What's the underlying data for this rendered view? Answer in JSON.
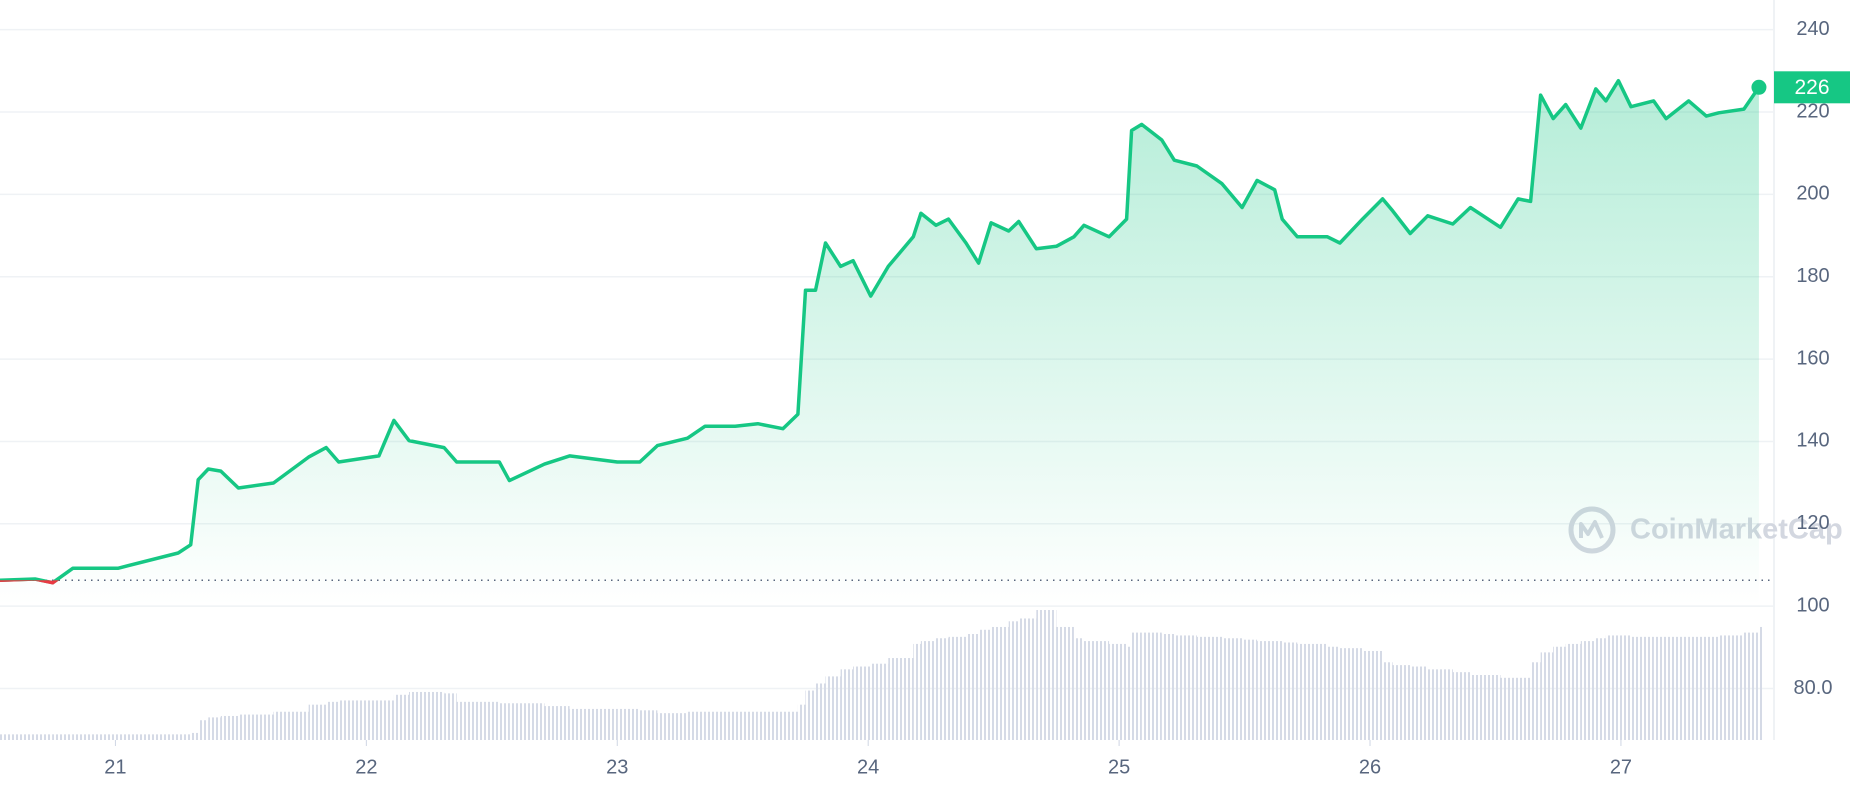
{
  "chart_data": {
    "type": "line",
    "x": [
      20.54,
      20.68,
      20.75,
      20.83,
      21.01,
      21.25,
      21.3,
      21.33,
      21.37,
      21.42,
      21.49,
      21.63,
      21.77,
      21.84,
      21.89,
      22.05,
      22.11,
      22.17,
      22.31,
      22.36,
      22.53,
      22.57,
      22.71,
      22.81,
      23.0,
      23.09,
      23.16,
      23.28,
      23.35,
      23.47,
      23.56,
      23.66,
      23.72,
      23.75,
      23.79,
      23.83,
      23.89,
      23.94,
      24.01,
      24.08,
      24.18,
      24.21,
      24.27,
      24.32,
      24.39,
      24.44,
      24.49,
      24.56,
      24.6,
      24.67,
      24.75,
      24.82,
      24.86,
      24.96,
      25.03,
      25.05,
      25.09,
      25.17,
      25.22,
      25.31,
      25.41,
      25.49,
      25.55,
      25.62,
      25.65,
      25.71,
      25.83,
      25.88,
      25.97,
      26.05,
      26.09,
      26.16,
      26.23,
      26.33,
      26.4,
      26.52,
      26.59,
      26.64,
      26.68,
      26.73,
      26.78,
      26.84,
      26.9,
      26.94,
      26.99,
      27.04,
      27.13,
      27.18,
      27.27,
      27.34,
      27.39,
      27.49,
      27.55
    ],
    "values": [
      106.3,
      106.6,
      105.7,
      109.2,
      109.2,
      112.9,
      114.9,
      130.7,
      133.3,
      132.8,
      128.7,
      129.9,
      136.2,
      138.5,
      135,
      136.5,
      145.1,
      140.2,
      138.5,
      135,
      135,
      130.5,
      134.5,
      136.5,
      135,
      135,
      139,
      140.8,
      143.7,
      143.7,
      144.3,
      143.1,
      146.6,
      176.7,
      176.7,
      188.2,
      182.5,
      183.9,
      175.3,
      182.5,
      189.7,
      195.4,
      192.5,
      194,
      188.2,
      183.3,
      193.1,
      191.1,
      193.4,
      186.8,
      187.4,
      189.7,
      192.5,
      189.7,
      194,
      215.5,
      217,
      213.2,
      208.3,
      206.9,
      202.6,
      196.8,
      203.4,
      201.1,
      194,
      189.7,
      189.7,
      188.2,
      194,
      198.9,
      196,
      190.5,
      194.8,
      192.8,
      196.8,
      192,
      198.9,
      198.3,
      224.1,
      218.4,
      221.8,
      216.1,
      225.6,
      222.7,
      227.6,
      221.3,
      222.7,
      218.4,
      222.7,
      219,
      219.8,
      220.7,
      226
    ],
    "volume": [
      4,
      4,
      4,
      4,
      4,
      4,
      5,
      14,
      16,
      17,
      18,
      20,
      25,
      27,
      28,
      28,
      32,
      34,
      33,
      27,
      26,
      26,
      24,
      22,
      22,
      21,
      19,
      20,
      20,
      20,
      20,
      20,
      25,
      35,
      40,
      45,
      50,
      52,
      54,
      58,
      68,
      70,
      72,
      73,
      75,
      78,
      80,
      84,
      86,
      92,
      80,
      72,
      70,
      68,
      66,
      76,
      76,
      75,
      74,
      73,
      72,
      71,
      70,
      70,
      69,
      68,
      66,
      65,
      63,
      55,
      53,
      52,
      50,
      48,
      46,
      44,
      44,
      55,
      62,
      66,
      68,
      70,
      72,
      74,
      74,
      73,
      73,
      73,
      73,
      73,
      74,
      76,
      80
    ],
    "color": "#16c784",
    "down_color": "#ea3943",
    "baseline": 106.3,
    "current_price": 226,
    "xlim": [
      20.54,
      27.61
    ],
    "xticks": [
      21,
      22,
      23,
      24,
      25,
      26,
      27
    ],
    "ylim": [
      67.5,
      247.2
    ],
    "yticks": [
      {
        "value": 80,
        "label": "80.0"
      },
      100,
      120,
      140,
      160,
      180,
      200,
      220,
      240
    ],
    "grid": true,
    "watermark": "CoinMarketCap"
  }
}
